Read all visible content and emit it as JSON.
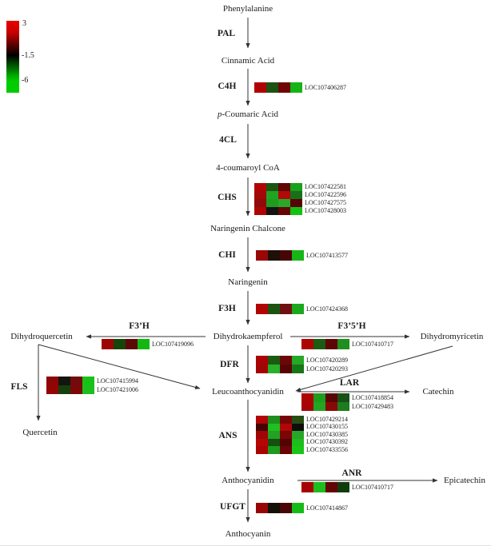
{
  "color_scale": {
    "max": "3",
    "mid": "-1.5",
    "min": "-6",
    "top_color": "#ea0000",
    "mid_color": "#000000",
    "bottom_color": "#00cc00"
  },
  "compounds": {
    "phenylalanine": "Phenylalanine",
    "cinnamic_acid": "Cinnamic Acid",
    "p_coumaric_prefix": "p",
    "p_coumaric_rest": "-Coumaric Acid",
    "coumaroyl_coa": "4-coumaroyl CoA",
    "naringenin_chalcone": "Naringenin Chalcone",
    "naringenin": "Naringenin",
    "dihydrokaempferol": "Dihydrokaempferol",
    "dihydroquercetin": "Dihydroquercetin",
    "dihydromyricetin": "Dihydromyricetin",
    "leucoanthocyanidin": "Leucoanthocyanidin",
    "quercetin": "Quercetin",
    "catechin": "Catechin",
    "anthocyanidin": "Anthocyanidin",
    "epicatechin": "Epicatechin",
    "anthocyanin": "Anthocyanin"
  },
  "enzymes": {
    "pal": "PAL",
    "c4h": "C4H",
    "four_cl": "4CL",
    "chs": "CHS",
    "chi": "CHI",
    "f3h": "F3H",
    "f3ph": "F3’H",
    "f35h": "F3’5’H",
    "dfr": "DFR",
    "fls": "FLS",
    "lar": "LAR",
    "ans": "ANS",
    "anr": "ANR",
    "ufgt": "UFGT"
  },
  "heatmaps": {
    "c4h": {
      "rows": [
        {
          "gene": "LOC107406287",
          "colors": [
            "#b00202",
            "#1c5212",
            "#6e0606",
            "#16b416"
          ]
        }
      ]
    },
    "chs": {
      "rows": [
        {
          "gene": "LOC107422581",
          "colors": [
            "#b20303",
            "#1c5512",
            "#600404",
            "#1aa01a"
          ]
        },
        {
          "gene": "LOC107422596",
          "colors": [
            "#a40808",
            "#21a421",
            "#b00909",
            "#187018"
          ]
        },
        {
          "gene": "LOC107427575",
          "colors": [
            "#8f0a0a",
            "#1f9c1f",
            "#2aa82a",
            "#570303"
          ]
        },
        {
          "gene": "LOC107428003",
          "colors": [
            "#ae0404",
            "#131313",
            "#650505",
            "#13c013"
          ]
        }
      ]
    },
    "chi": {
      "rows": [
        {
          "gene": "LOC107413577",
          "colors": [
            "#9a0707",
            "#1d1006",
            "#470606",
            "#17b517"
          ]
        }
      ]
    },
    "f3h": {
      "rows": [
        {
          "gene": "LOC107424368",
          "colors": [
            "#b20404",
            "#1b5411",
            "#701010",
            "#1ca81c"
          ]
        }
      ]
    },
    "f3ph": {
      "rows": [
        {
          "gene": "LOC107419096",
          "colors": [
            "#9d0505",
            "#164509",
            "#5c0808",
            "#12b812"
          ]
        }
      ]
    },
    "f35h": {
      "rows": [
        {
          "gene": "LOC107410717",
          "colors": [
            "#ae0303",
            "#1c5c12",
            "#5e0606",
            "#1f8f1f"
          ]
        }
      ]
    },
    "dfr": {
      "rows": [
        {
          "gene": "LOC107420289",
          "colors": [
            "#aa0303",
            "#1a5b10",
            "#6d0707",
            "#25a825"
          ]
        },
        {
          "gene": "LOC107420293",
          "colors": [
            "#a30505",
            "#28b028",
            "#580404",
            "#167716"
          ]
        }
      ]
    },
    "fls": {
      "rows": [
        {
          "gene": "LOC107415994",
          "colors": [
            "#8d0606",
            "#131510",
            "#720b0b",
            "#17c217"
          ]
        },
        {
          "gene": "LOC107421006",
          "colors": [
            "#930505",
            "#163f0e",
            "#7c0707",
            "#1cc01c"
          ]
        }
      ]
    },
    "lar": {
      "rows": [
        {
          "gene": "LOC107418854",
          "colors": [
            "#ae0303",
            "#1d9c1d",
            "#590404",
            "#175017"
          ]
        },
        {
          "gene": "LOC107429483",
          "colors": [
            "#a60505",
            "#23a423",
            "#880808",
            "#1d7c1d"
          ]
        }
      ]
    },
    "ans": {
      "rows": [
        {
          "gene": "LOC107429214",
          "colors": [
            "#b20505",
            "#1e8e1e",
            "#770606",
            "#274d13"
          ]
        },
        {
          "gene": "LOC107430155",
          "colors": [
            "#460303",
            "#1fc01f",
            "#b00808",
            "#0e0e0e"
          ]
        },
        {
          "gene": "LOC107430385",
          "colors": [
            "#a10404",
            "#22a122",
            "#7c0505",
            "#28a628"
          ]
        },
        {
          "gene": "LOC107430392",
          "colors": [
            "#b60505",
            "#14500e",
            "#520404",
            "#1ebc1e"
          ]
        },
        {
          "gene": "LOC107433556",
          "colors": [
            "#ab0303",
            "#1d9b1d",
            "#6b0505",
            "#18c618"
          ]
        }
      ]
    },
    "anr": {
      "rows": [
        {
          "gene": "LOC107410717",
          "colors": [
            "#a60404",
            "#1dbd1d",
            "#620505",
            "#113d0d"
          ]
        }
      ]
    },
    "ufgt": {
      "rows": [
        {
          "gene": "LOC107414867",
          "colors": [
            "#990505",
            "#131008",
            "#490606",
            "#15bc15"
          ]
        }
      ]
    }
  }
}
